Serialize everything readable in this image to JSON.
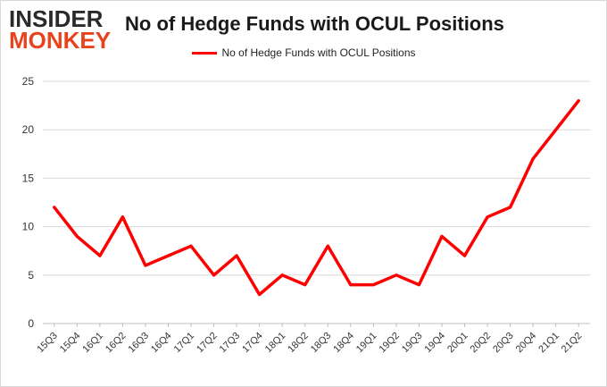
{
  "logo": {
    "line1": "INSIDER",
    "line2": "MONKEY"
  },
  "chart_data": {
    "type": "line",
    "title": "No of Hedge Funds with OCUL Positions",
    "xlabel": "",
    "ylabel": "",
    "ylim": [
      0,
      25
    ],
    "yticks": [
      0,
      5,
      10,
      15,
      20,
      25
    ],
    "grid": true,
    "legend_position": "top-center",
    "categories": [
      "15Q3",
      "15Q4",
      "16Q1",
      "16Q2",
      "16Q3",
      "16Q4",
      "17Q1",
      "17Q2",
      "17Q3",
      "17Q4",
      "18Q1",
      "18Q2",
      "18Q3",
      "18Q4",
      "19Q1",
      "19Q2",
      "19Q3",
      "19Q4",
      "20Q1",
      "20Q2",
      "20Q3",
      "20Q4",
      "21Q1",
      "21Q2"
    ],
    "series": [
      {
        "name": "No of Hedge Funds with OCUL Positions",
        "color": "#ff0000",
        "values": [
          12,
          9,
          7,
          11,
          6,
          7,
          8,
          5,
          7,
          3,
          5,
          4,
          8,
          4,
          4,
          5,
          4,
          9,
          7,
          11,
          12,
          17,
          20,
          23
        ]
      }
    ]
  }
}
